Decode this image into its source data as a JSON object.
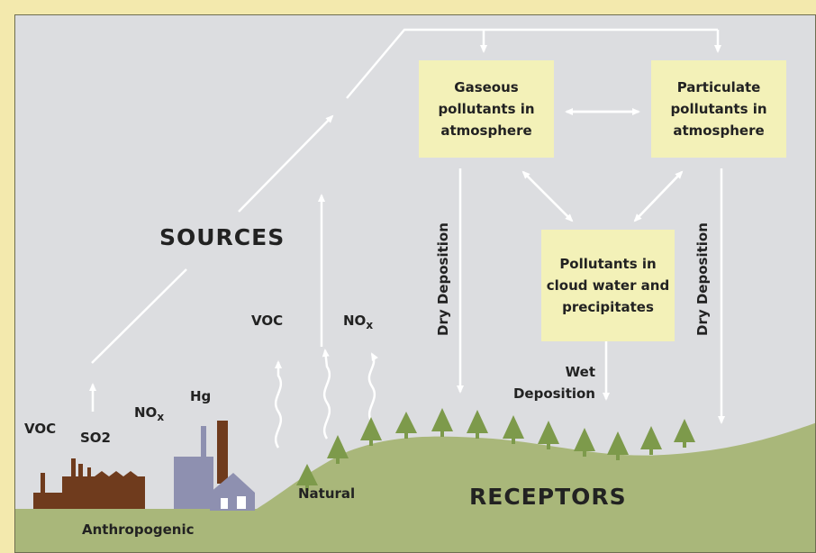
{
  "boxes": {
    "gaseous": "Gaseous pollutants in atmosphere",
    "particulate": "Particulate pollutants in atmosphere",
    "cloud": "Pollutants in cloud water and precipitates"
  },
  "labels": {
    "sources": "SOURCES",
    "receptors": "RECEPTORS",
    "anthropogenic": "Anthropogenic",
    "natural": "Natural",
    "voc_left": "VOC",
    "so2": "SO2",
    "nox_left": "NO",
    "nox_left_sub": "x",
    "hg": "Hg",
    "voc_natural": "VOC",
    "nox_natural": "NO",
    "nox_natural_sub": "x",
    "dry_deposition_left": "Dry Deposition",
    "dry_deposition_right": "Dry Deposition",
    "wet_deposition": "Wet Deposition"
  },
  "colors": {
    "border": "#f3e9ad",
    "background": "#dcdde0",
    "box_fill": "#f3f1b8",
    "ground": "#a9b77a",
    "tree": "#7d9a4b",
    "factory": "#6f3b1d",
    "plant": "#8e90b0",
    "arrow": "#ffffff"
  }
}
